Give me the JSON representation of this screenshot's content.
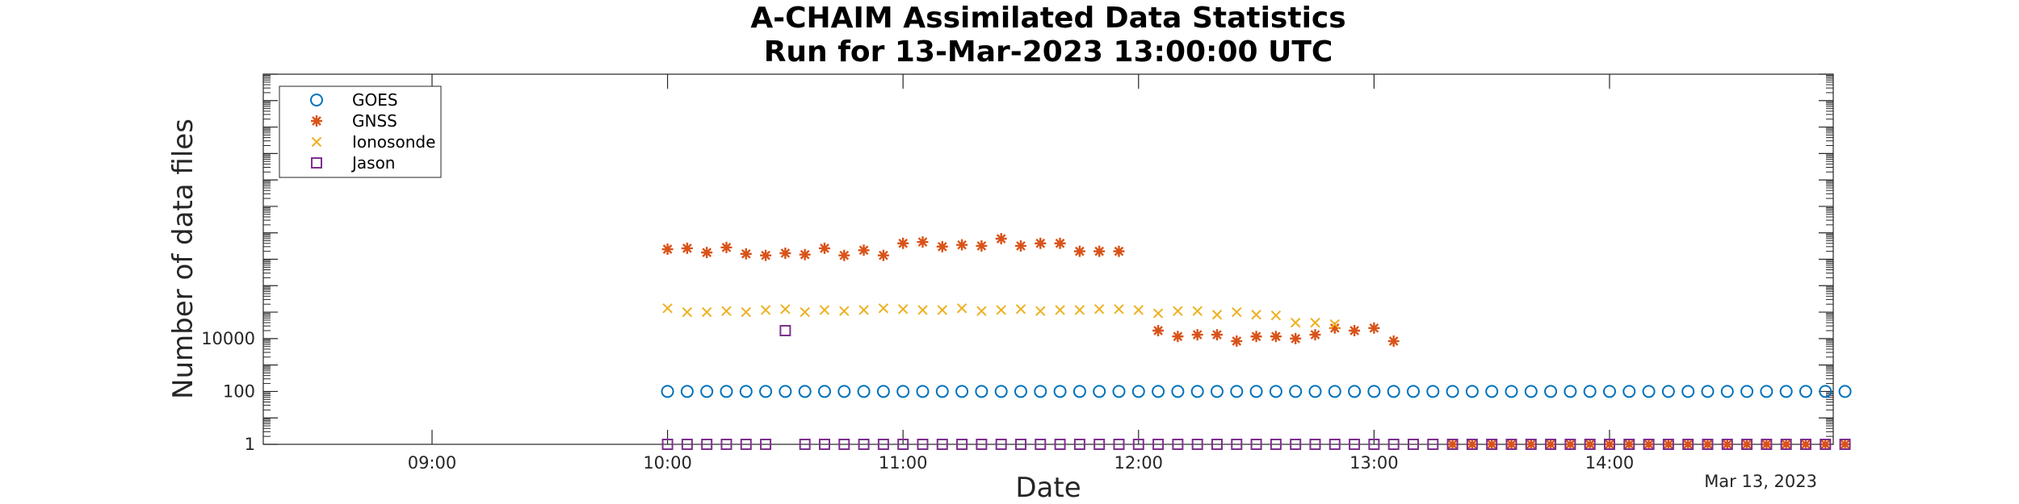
{
  "chart_data": {
    "type": "scatter",
    "title": [
      "A-CHAIM Assimilated Data Statistics",
      "Run for 13-Mar-2023 13:00:00 UTC"
    ],
    "xlabel": "Date",
    "ylabel": "Number of data files",
    "x_axis_note": "Mar 13, 2023",
    "yscale": "log",
    "ylim": [
      1,
      100000000000000
    ],
    "xlim": [
      "08:17",
      "14:57"
    ],
    "x_ticks": [
      "09:00",
      "10:00",
      "11:00",
      "12:00",
      "13:00",
      "14:00"
    ],
    "y_ticks": [
      {
        "value": 1,
        "label": "1"
      },
      {
        "value": 100,
        "label": "100"
      },
      {
        "value": 10000,
        "label": "10000"
      }
    ],
    "grid": false,
    "legend_position": "top-left",
    "series": [
      {
        "name": "GOES",
        "marker": "circle",
        "color": "#0072BD",
        "start": "10:00",
        "step_minutes": 5,
        "values": [
          100,
          100,
          100,
          100,
          100,
          100,
          100,
          100,
          100,
          100,
          100,
          100,
          100,
          100,
          100,
          100,
          100,
          100,
          100,
          100,
          100,
          100,
          100,
          100,
          100,
          100,
          100,
          100,
          100,
          100,
          100,
          100,
          100,
          100,
          100,
          100,
          100,
          100,
          100,
          100,
          100,
          100,
          100,
          100,
          100,
          100,
          100,
          100,
          100,
          100,
          100,
          100,
          100,
          100,
          100,
          100,
          100,
          100,
          100,
          100,
          100
        ]
      },
      {
        "name": "GNSS",
        "marker": "asterisk",
        "color": "#D95319",
        "start": "10:00",
        "step_minutes": 5,
        "values": [
          24000000.0,
          26000000.0,
          18000000.0,
          28000000.0,
          16000000.0,
          14000000.0,
          17000000.0,
          15000000.0,
          26000000.0,
          14000000.0,
          22000000.0,
          14000000.0,
          40000000.0,
          45000000.0,
          30000000.0,
          35000000.0,
          32000000.0,
          60000000.0,
          32000000.0,
          40000000.0,
          40000000.0,
          20000000.0,
          20000000.0,
          20000000.0,
          null,
          20000,
          12000,
          14000,
          14000,
          8000,
          12000,
          12000,
          10000,
          14000,
          25000,
          20000,
          25000,
          8000,
          null,
          null,
          1,
          1,
          1,
          1,
          1,
          1,
          1,
          1,
          1,
          1,
          1,
          1,
          1,
          1,
          1,
          1,
          1,
          1,
          1,
          1,
          1
        ]
      },
      {
        "name": "Ionosonde",
        "marker": "x",
        "color": "#EDB120",
        "start": "10:00",
        "step_minutes": 5,
        "values": [
          140000,
          100000,
          100000,
          110000,
          100000,
          120000,
          130000,
          100000,
          120000,
          110000,
          120000,
          140000,
          130000,
          120000,
          120000,
          140000,
          110000,
          120000,
          130000,
          110000,
          120000,
          120000,
          130000,
          130000,
          120000,
          90000,
          110000,
          110000,
          80000,
          100000,
          80000,
          75000,
          40000,
          40000,
          35000
        ]
      },
      {
        "name": "Jason",
        "marker": "square",
        "color": "#7E2F8E",
        "start": "10:00",
        "step_minutes": 5,
        "values": [
          1,
          1,
          1,
          1,
          1,
          1,
          20000,
          1,
          1,
          1,
          1,
          1,
          1,
          1,
          1,
          1,
          1,
          1,
          1,
          1,
          1,
          1,
          1,
          1,
          1,
          1,
          1,
          1,
          1,
          1,
          1,
          1,
          1,
          1,
          1,
          1,
          1,
          1,
          1,
          1,
          1,
          1,
          1,
          1,
          1,
          1,
          1,
          1,
          1,
          1,
          1,
          1,
          1,
          1,
          1,
          1,
          1,
          1,
          1,
          1,
          1
        ]
      }
    ]
  }
}
